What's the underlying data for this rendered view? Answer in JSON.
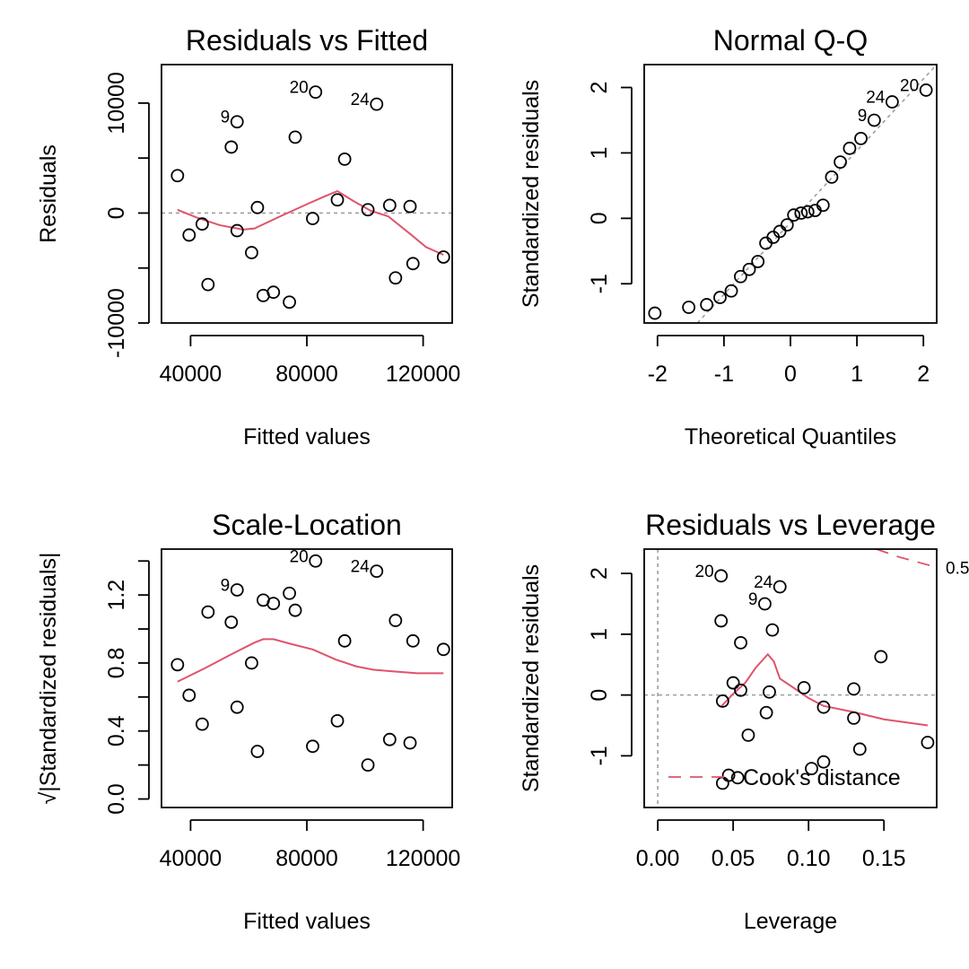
{
  "colors": {
    "smooth": "#DF536B",
    "reference": "#9E9E9E",
    "points": "#000000"
  },
  "chart_data": [
    {
      "type": "scatter",
      "title": "Residuals vs Fitted",
      "xlabel": "Fitted values",
      "ylabel": "Residuals",
      "xlim": [
        30000,
        130000
      ],
      "ylim": [
        -10000,
        13500
      ],
      "xticks": [
        {
          "v": 40000,
          "label": "40000"
        },
        {
          "v": 80000,
          "label": "80000"
        },
        {
          "v": 120000,
          "label": "120000"
        }
      ],
      "yticks": [
        {
          "v": -10000,
          "label": "-10000"
        },
        {
          "v": -5000,
          "label": ""
        },
        {
          "v": 0,
          "label": "0"
        },
        {
          "v": 5000,
          "label": ""
        },
        {
          "v": 10000,
          "label": "10000"
        }
      ],
      "hline": 0,
      "points": [
        {
          "x": 35500,
          "y": 3400
        },
        {
          "x": 39500,
          "y": -2000
        },
        {
          "x": 44000,
          "y": -1000
        },
        {
          "x": 46000,
          "y": -6500
        },
        {
          "x": 54000,
          "y": 6000
        },
        {
          "x": 56000,
          "y": 8300,
          "label": "9"
        },
        {
          "x": 56000,
          "y": -1600
        },
        {
          "x": 61000,
          "y": -3600
        },
        {
          "x": 63000,
          "y": 500
        },
        {
          "x": 65000,
          "y": -7500
        },
        {
          "x": 68500,
          "y": -7200
        },
        {
          "x": 74000,
          "y": -8100
        },
        {
          "x": 76000,
          "y": 6900
        },
        {
          "x": 82000,
          "y": -500
        },
        {
          "x": 83000,
          "y": 11000,
          "label": "20"
        },
        {
          "x": 90500,
          "y": 1200
        },
        {
          "x": 93000,
          "y": 4900
        },
        {
          "x": 101000,
          "y": 300
        },
        {
          "x": 104000,
          "y": 9900,
          "label": "24"
        },
        {
          "x": 108500,
          "y": 700
        },
        {
          "x": 110500,
          "y": -5900
        },
        {
          "x": 115500,
          "y": 600
        },
        {
          "x": 116500,
          "y": -4600
        },
        {
          "x": 127000,
          "y": -4000
        }
      ],
      "smooth": [
        [
          35500,
          300
        ],
        [
          42000,
          -400
        ],
        [
          50000,
          -1100
        ],
        [
          58000,
          -1500
        ],
        [
          62000,
          -1400
        ],
        [
          70000,
          -400
        ],
        [
          80000,
          800
        ],
        [
          86000,
          1500
        ],
        [
          90500,
          2000
        ],
        [
          96000,
          1100
        ],
        [
          102000,
          200
        ],
        [
          108000,
          -300
        ],
        [
          116000,
          -2000
        ],
        [
          121000,
          -3100
        ],
        [
          127000,
          -3800
        ]
      ]
    },
    {
      "type": "scatter",
      "title": "Normal Q-Q",
      "xlabel": "Theoretical Quantiles",
      "ylabel": "Standardized residuals",
      "xlim": [
        -2.2,
        2.2
      ],
      "ylim": [
        -1.6,
        2.35
      ],
      "xticks": [
        {
          "v": -2,
          "label": "-2"
        },
        {
          "v": -1,
          "label": "-1"
        },
        {
          "v": 0,
          "label": "0"
        },
        {
          "v": 1,
          "label": "1"
        },
        {
          "v": 2,
          "label": "2"
        }
      ],
      "yticks": [
        {
          "v": -1,
          "label": "-1"
        },
        {
          "v": 0,
          "label": "0"
        },
        {
          "v": 1,
          "label": "1"
        },
        {
          "v": 2,
          "label": "2"
        }
      ],
      "refline": [
        [
          -1.4,
          -1.6
        ],
        [
          2.2,
          2.35
        ]
      ],
      "points": [
        {
          "x": -2.04,
          "y": -1.45
        },
        {
          "x": -1.53,
          "y": -1.36
        },
        {
          "x": -1.26,
          "y": -1.32
        },
        {
          "x": -1.06,
          "y": -1.21
        },
        {
          "x": -0.89,
          "y": -1.11
        },
        {
          "x": -0.75,
          "y": -0.89
        },
        {
          "x": -0.62,
          "y": -0.78
        },
        {
          "x": -0.49,
          "y": -0.66
        },
        {
          "x": -0.37,
          "y": -0.38
        },
        {
          "x": -0.26,
          "y": -0.29
        },
        {
          "x": -0.16,
          "y": -0.2
        },
        {
          "x": -0.05,
          "y": -0.1
        },
        {
          "x": 0.05,
          "y": 0.05
        },
        {
          "x": 0.16,
          "y": 0.08
        },
        {
          "x": 0.26,
          "y": 0.1
        },
        {
          "x": 0.37,
          "y": 0.12
        },
        {
          "x": 0.49,
          "y": 0.2
        },
        {
          "x": 0.62,
          "y": 0.63
        },
        {
          "x": 0.75,
          "y": 0.86
        },
        {
          "x": 0.89,
          "y": 1.07
        },
        {
          "x": 1.06,
          "y": 1.22
        },
        {
          "x": 1.26,
          "y": 1.5,
          "label": "9"
        },
        {
          "x": 1.53,
          "y": 1.78,
          "label": "24"
        },
        {
          "x": 2.04,
          "y": 1.96,
          "label": "20"
        }
      ]
    },
    {
      "type": "scatter",
      "title": "Scale-Location",
      "xlabel": "Fitted values",
      "ylabel": "√|Standardized residuals|",
      "xlim": [
        30000,
        130000
      ],
      "ylim": [
        -0.05,
        1.47
      ],
      "xticks": [
        {
          "v": 40000,
          "label": "40000"
        },
        {
          "v": 80000,
          "label": "80000"
        },
        {
          "v": 120000,
          "label": "120000"
        }
      ],
      "yticks": [
        {
          "v": 0,
          "label": "0.0"
        },
        {
          "v": 0.2,
          "label": ""
        },
        {
          "v": 0.4,
          "label": "0.4"
        },
        {
          "v": 0.6,
          "label": ""
        },
        {
          "v": 0.8,
          "label": "0.8"
        },
        {
          "v": 1.0,
          "label": ""
        },
        {
          "v": 1.2,
          "label": "1.2"
        },
        {
          "v": 1.4,
          "label": ""
        }
      ],
      "points": [
        {
          "x": 35500,
          "y": 0.79
        },
        {
          "x": 39500,
          "y": 0.61
        },
        {
          "x": 44000,
          "y": 0.44
        },
        {
          "x": 46000,
          "y": 1.1
        },
        {
          "x": 54000,
          "y": 1.04
        },
        {
          "x": 56000,
          "y": 1.23,
          "label": "9"
        },
        {
          "x": 56000,
          "y": 0.54
        },
        {
          "x": 61000,
          "y": 0.8
        },
        {
          "x": 63000,
          "y": 0.28
        },
        {
          "x": 65000,
          "y": 1.17
        },
        {
          "x": 68500,
          "y": 1.15
        },
        {
          "x": 74000,
          "y": 1.21
        },
        {
          "x": 76000,
          "y": 1.11
        },
        {
          "x": 82000,
          "y": 0.31
        },
        {
          "x": 83000,
          "y": 1.4,
          "label": "20"
        },
        {
          "x": 90500,
          "y": 0.46
        },
        {
          "x": 93000,
          "y": 0.93
        },
        {
          "x": 101000,
          "y": 0.2
        },
        {
          "x": 104000,
          "y": 1.34,
          "label": "24"
        },
        {
          "x": 108500,
          "y": 0.35
        },
        {
          "x": 110500,
          "y": 1.05
        },
        {
          "x": 115500,
          "y": 0.33
        },
        {
          "x": 116500,
          "y": 0.93
        },
        {
          "x": 127000,
          "y": 0.88
        }
      ],
      "smooth": [
        [
          35500,
          0.69
        ],
        [
          45000,
          0.77
        ],
        [
          55000,
          0.86
        ],
        [
          62000,
          0.92
        ],
        [
          65000,
          0.94
        ],
        [
          68500,
          0.94
        ],
        [
          75000,
          0.91
        ],
        [
          82000,
          0.88
        ],
        [
          90000,
          0.82
        ],
        [
          97000,
          0.78
        ],
        [
          103000,
          0.76
        ],
        [
          110000,
          0.75
        ],
        [
          118000,
          0.74
        ],
        [
          127000,
          0.74
        ]
      ]
    },
    {
      "type": "scatter",
      "title": "Residuals vs Leverage",
      "xlabel": "Leverage",
      "ylabel": "Standardized residuals",
      "xlim": [
        -0.009,
        0.185
      ],
      "ylim": [
        -1.85,
        2.4
      ],
      "xticks": [
        {
          "v": 0.0,
          "label": "0.00"
        },
        {
          "v": 0.05,
          "label": "0.05"
        },
        {
          "v": 0.1,
          "label": "0.10"
        },
        {
          "v": 0.15,
          "label": "0.15"
        }
      ],
      "yticks": [
        {
          "v": -1,
          "label": "-1"
        },
        {
          "v": 0,
          "label": "0"
        },
        {
          "v": 1,
          "label": "1"
        },
        {
          "v": 2,
          "label": "2"
        }
      ],
      "hline": 0,
      "vline": 0,
      "points": [
        {
          "x": 0.042,
          "y": 1.96,
          "label": "20"
        },
        {
          "x": 0.081,
          "y": 1.78,
          "label": "24"
        },
        {
          "x": 0.071,
          "y": 1.5,
          "label": "9"
        },
        {
          "x": 0.042,
          "y": 1.22
        },
        {
          "x": 0.076,
          "y": 1.07
        },
        {
          "x": 0.055,
          "y": 0.86
        },
        {
          "x": 0.148,
          "y": 0.63
        },
        {
          "x": 0.05,
          "y": 0.2
        },
        {
          "x": 0.097,
          "y": 0.12
        },
        {
          "x": 0.13,
          "y": 0.1
        },
        {
          "x": 0.055,
          "y": 0.08
        },
        {
          "x": 0.074,
          "y": 0.05
        },
        {
          "x": 0.043,
          "y": -0.1
        },
        {
          "x": 0.11,
          "y": -0.2
        },
        {
          "x": 0.072,
          "y": -0.29
        },
        {
          "x": 0.13,
          "y": -0.38
        },
        {
          "x": 0.06,
          "y": -0.66
        },
        {
          "x": 0.179,
          "y": -0.78
        },
        {
          "x": 0.134,
          "y": -0.89
        },
        {
          "x": 0.11,
          "y": -1.1
        },
        {
          "x": 0.102,
          "y": -1.21
        },
        {
          "x": 0.047,
          "y": -1.32
        },
        {
          "x": 0.053,
          "y": -1.36
        },
        {
          "x": 0.043,
          "y": -1.45
        }
      ],
      "smooth": [
        [
          0.042,
          -0.19
        ],
        [
          0.05,
          0.02
        ],
        [
          0.058,
          0.2
        ],
        [
          0.065,
          0.45
        ],
        [
          0.073,
          0.67
        ],
        [
          0.077,
          0.55
        ],
        [
          0.081,
          0.27
        ],
        [
          0.09,
          0.12
        ],
        [
          0.1,
          -0.05
        ],
        [
          0.11,
          -0.18
        ],
        [
          0.13,
          -0.28
        ],
        [
          0.15,
          -0.4
        ],
        [
          0.179,
          -0.5
        ]
      ],
      "cooks_curve": [
        [
          0.145,
          2.4
        ],
        [
          0.16,
          2.27
        ],
        [
          0.185,
          2.1
        ]
      ],
      "cooks_label": "0.5",
      "legend": {
        "label": "Cook's distance",
        "position": "bottom-right"
      }
    }
  ]
}
